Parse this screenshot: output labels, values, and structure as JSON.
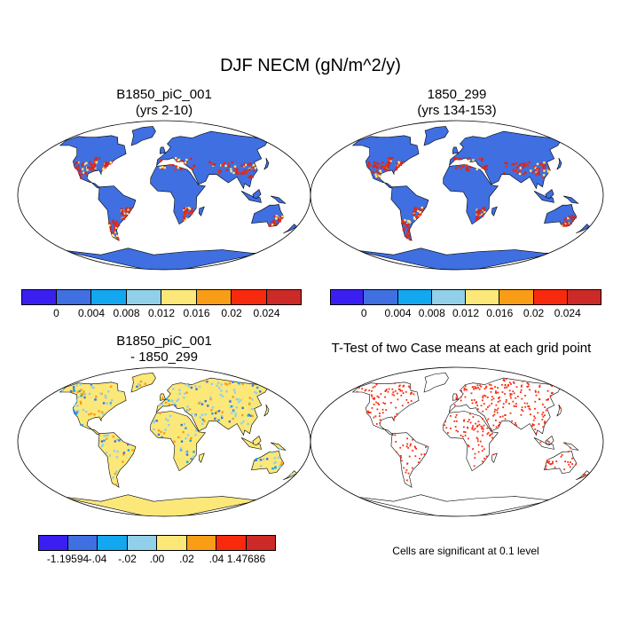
{
  "main_title": "DJF NECM (gN/m^2/y)",
  "panels": [
    {
      "title_line1": "B1850_piC_001",
      "title_line2": "(yrs 2-10)"
    },
    {
      "title_line1": "1850_299",
      "title_line2": "(yrs 134-153)"
    },
    {
      "title_line1": "B1850_piC_001",
      "title_line2": "- 1850_299"
    },
    {
      "title_line1": "T-Test of two Case means at each grid point",
      "title_line2": ""
    }
  ],
  "colorbar_top": {
    "colors": [
      "#3b1ff0",
      "#3f6fe0",
      "#12a7ef",
      "#92cfe8",
      "#fbe879",
      "#f99d17",
      "#f82a0e",
      "#cb2a27"
    ],
    "labels": [
      "0",
      "0.004",
      "0.008",
      "0.012",
      "0.016",
      "0.02",
      "0.024"
    ]
  },
  "colorbar_diff": {
    "colors": [
      "#3b1ff0",
      "#3f6fe0",
      "#12a7ef",
      "#92cfe8",
      "#fbe879",
      "#f99d17",
      "#f82a0e",
      "#cb2a27"
    ],
    "labels": [
      "-1.19594",
      "-.04",
      "-.02",
      ".00",
      ".02",
      ".04",
      "1.47686"
    ]
  },
  "significance_note": "Cells are significant at 0.1 level",
  "colors": {
    "ocean": "#ffffff",
    "land_low": "#3f6fe0",
    "land_diff": "#fbe879",
    "significant": "#f82a0e"
  }
}
